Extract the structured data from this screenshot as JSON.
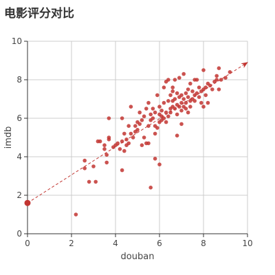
{
  "chart_data": {
    "type": "scatter",
    "title": "电影评分对比",
    "xlabel": "douban",
    "ylabel": "imdb",
    "xlim": [
      0,
      10
    ],
    "ylim": [
      0,
      10
    ],
    "xticks": [
      "0",
      "2",
      "4",
      "6",
      "8",
      "10"
    ],
    "yticks": [
      "0",
      "2",
      "4",
      "6",
      "8",
      "10"
    ],
    "grid": true,
    "legend": "none",
    "colors": {
      "point": "#c23531",
      "axis": "#333333",
      "grid": "#cccccc"
    },
    "series": [
      {
        "values": [
          [
            2.2,
            1.0
          ],
          [
            2.6,
            3.8
          ],
          [
            2.6,
            3.4
          ],
          [
            2.8,
            2.7
          ],
          [
            3.0,
            3.5
          ],
          [
            3.1,
            2.7
          ],
          [
            3.2,
            4.8
          ],
          [
            3.3,
            4.8
          ],
          [
            3.5,
            4.4
          ],
          [
            3.5,
            4.6
          ],
          [
            3.6,
            3.7
          ],
          [
            3.6,
            4.1
          ],
          [
            3.7,
            4.9
          ],
          [
            3.7,
            5.0
          ],
          [
            3.7,
            6.0
          ],
          [
            3.9,
            4.5
          ],
          [
            4.0,
            4.6
          ],
          [
            4.1,
            4.7
          ],
          [
            4.2,
            4.4
          ],
          [
            4.3,
            3.3
          ],
          [
            4.3,
            4.8
          ],
          [
            4.3,
            6.0
          ],
          [
            4.4,
            5.2
          ],
          [
            4.4,
            4.3
          ],
          [
            4.5,
            4.9
          ],
          [
            4.5,
            4.6
          ],
          [
            4.6,
            5.6
          ],
          [
            4.6,
            4.7
          ],
          [
            4.7,
            5.2
          ],
          [
            4.7,
            6.6
          ],
          [
            4.8,
            5.0
          ],
          [
            4.9,
            5.3
          ],
          [
            4.9,
            5.6
          ],
          [
            5.0,
            5.4
          ],
          [
            5.0,
            5.8
          ],
          [
            5.1,
            6.3
          ],
          [
            5.1,
            5.7
          ],
          [
            5.2,
            4.6
          ],
          [
            5.2,
            5.9
          ],
          [
            5.3,
            6.1
          ],
          [
            5.3,
            5.0
          ],
          [
            5.4,
            4.7
          ],
          [
            5.4,
            6.5
          ],
          [
            5.5,
            6.8
          ],
          [
            5.5,
            5.6
          ],
          [
            5.5,
            4.7
          ],
          [
            5.6,
            2.4
          ],
          [
            5.6,
            5.9
          ],
          [
            5.6,
            6.2
          ],
          [
            5.7,
            6.0
          ],
          [
            5.7,
            6.5
          ],
          [
            5.8,
            3.9
          ],
          [
            5.8,
            5.2
          ],
          [
            5.8,
            5.6
          ],
          [
            5.8,
            6.3
          ],
          [
            5.9,
            7.2
          ],
          [
            5.9,
            5.5
          ],
          [
            6.0,
            6.2
          ],
          [
            6.0,
            3.6
          ],
          [
            6.0,
            6.6
          ],
          [
            6.0,
            5.8
          ],
          [
            6.1,
            6.1
          ],
          [
            6.1,
            6.4
          ],
          [
            6.1,
            5.9
          ],
          [
            6.2,
            6.0
          ],
          [
            6.2,
            6.8
          ],
          [
            6.2,
            7.6
          ],
          [
            6.3,
            6.3
          ],
          [
            6.3,
            5.8
          ],
          [
            6.3,
            7.9
          ],
          [
            6.4,
            6.9
          ],
          [
            6.4,
            6.1
          ],
          [
            6.4,
            8.0
          ],
          [
            6.5,
            7.2
          ],
          [
            6.5,
            6.5
          ],
          [
            6.5,
            6.3
          ],
          [
            6.6,
            6.6
          ],
          [
            6.6,
            6.9
          ],
          [
            6.6,
            7.4
          ],
          [
            6.6,
            7.6
          ],
          [
            6.7,
            6.5
          ],
          [
            6.7,
            7.0
          ],
          [
            6.7,
            8.0
          ],
          [
            6.8,
            6.7
          ],
          [
            6.8,
            7.3
          ],
          [
            6.8,
            6.2
          ],
          [
            6.8,
            5.1
          ],
          [
            6.9,
            7.1
          ],
          [
            6.9,
            6.6
          ],
          [
            6.9,
            8.1
          ],
          [
            7.0,
            6.8
          ],
          [
            7.0,
            7.2
          ],
          [
            7.0,
            6.4
          ],
          [
            7.0,
            5.7
          ],
          [
            7.1,
            7.0
          ],
          [
            7.1,
            6.6
          ],
          [
            7.1,
            8.3
          ],
          [
            7.2,
            7.3
          ],
          [
            7.2,
            6.8
          ],
          [
            7.2,
            6.5
          ],
          [
            7.3,
            7.1
          ],
          [
            7.3,
            6.3
          ],
          [
            7.3,
            7.5
          ],
          [
            7.4,
            6.9
          ],
          [
            7.4,
            6.6
          ],
          [
            7.4,
            7.8
          ],
          [
            7.5,
            7.4
          ],
          [
            7.5,
            7.0
          ],
          [
            7.6,
            7.2
          ],
          [
            7.6,
            6.9
          ],
          [
            7.6,
            8.0
          ],
          [
            7.7,
            7.3
          ],
          [
            7.7,
            8.0
          ],
          [
            7.8,
            7.1
          ],
          [
            7.8,
            7.6
          ],
          [
            7.9,
            7.4
          ],
          [
            7.9,
            6.8
          ],
          [
            8.0,
            7.5
          ],
          [
            8.0,
            8.5
          ],
          [
            8.0,
            6.6
          ],
          [
            8.1,
            7.6
          ],
          [
            8.1,
            7.2
          ],
          [
            8.2,
            6.8
          ],
          [
            8.2,
            7.8
          ],
          [
            8.3,
            7.7
          ],
          [
            8.4,
            7.5
          ],
          [
            8.5,
            7.9
          ],
          [
            8.6,
            8.2
          ],
          [
            8.6,
            8.0
          ],
          [
            8.7,
            7.5
          ],
          [
            8.7,
            8.6
          ],
          [
            8.8,
            8.0
          ],
          [
            9.0,
            8.1
          ],
          [
            9.2,
            8.4
          ]
        ]
      }
    ],
    "trendline": {
      "start": [
        0,
        1.6
      ],
      "end": [
        10,
        8.9
      ]
    }
  }
}
